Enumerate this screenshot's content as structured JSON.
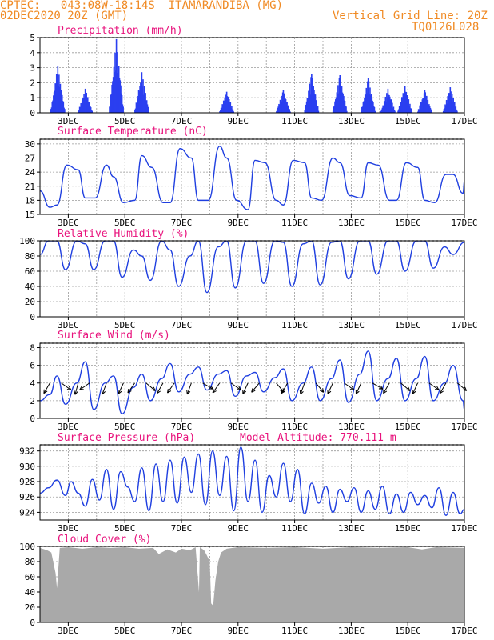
{
  "header": {
    "line1": "CPTEC:   043:08W-18:14S  ITAMARANDIBA (MG)",
    "line2": "02DEC2020 20Z (GMT)",
    "grid_note": "Vertical Grid Line: 20Z",
    "code": "TQ0126L028"
  },
  "colors": {
    "header": "#f08a24",
    "title": "#e8127c",
    "series": "#1f3fe0",
    "bars": "#2a3ff0",
    "cloud": "#a9a9a9",
    "grid": "#9a9a9a"
  },
  "x_axis": {
    "tick_labels": [
      "3DEC",
      "5DEC",
      "7DEC",
      "9DEC",
      "11DEC",
      "13DEC",
      "15DEC",
      "17DEC"
    ]
  },
  "chart_data": [
    {
      "id": "precip",
      "type": "bar",
      "title": "Precipitation (mm/h)",
      "yticks": [
        0,
        1,
        2,
        3,
        4,
        5
      ],
      "ylim": [
        0,
        5
      ],
      "bursts": [
        {
          "x": 2.63,
          "peak": 3.1
        },
        {
          "x": 3.6,
          "peak": 1.6
        },
        {
          "x": 4.7,
          "peak": 4.9
        },
        {
          "x": 5.6,
          "peak": 2.7
        },
        {
          "x": 8.6,
          "peak": 1.4
        },
        {
          "x": 10.6,
          "peak": 1.5
        },
        {
          "x": 11.6,
          "peak": 2.6
        },
        {
          "x": 12.6,
          "peak": 2.5
        },
        {
          "x": 13.6,
          "peak": 2.3
        },
        {
          "x": 14.3,
          "peak": 1.6
        },
        {
          "x": 14.9,
          "peak": 1.8
        },
        {
          "x": 15.6,
          "peak": 1.5
        },
        {
          "x": 16.5,
          "peak": 1.7
        }
      ]
    },
    {
      "id": "temp",
      "type": "line",
      "title": "Surface Temperature (nC)",
      "yticks": [
        15,
        18,
        21,
        24,
        27,
        30
      ],
      "ylim": [
        15,
        31
      ],
      "x": [
        2.0,
        2.35,
        2.6,
        2.95,
        3.35,
        3.6,
        3.95,
        4.35,
        4.6,
        4.95,
        5.35,
        5.6,
        5.95,
        6.35,
        6.6,
        6.95,
        7.35,
        7.6,
        7.95,
        8.35,
        8.6,
        8.95,
        9.35,
        9.6,
        9.95,
        10.35,
        10.6,
        10.95,
        11.35,
        11.6,
        11.95,
        12.35,
        12.6,
        12.95,
        13.35,
        13.6,
        13.95,
        14.35,
        14.6,
        14.95,
        15.35,
        15.6,
        15.95,
        16.35,
        16.6,
        16.95,
        17.0
      ],
      "y": [
        20,
        16.5,
        17,
        25.5,
        24.5,
        18.5,
        18.5,
        25.5,
        23,
        17.5,
        18,
        27.5,
        25,
        17.5,
        17.5,
        29,
        27,
        18,
        18,
        29.5,
        27,
        18,
        16,
        26.5,
        26,
        18,
        17,
        26.5,
        26,
        18.5,
        18,
        27,
        26,
        19,
        18.5,
        26,
        25.5,
        18,
        18,
        26,
        25,
        18,
        17.5,
        23.5,
        23.5,
        19.5,
        22
      ]
    },
    {
      "id": "rh",
      "type": "line",
      "title": "Relative Humidity (%)",
      "yticks": [
        0,
        20,
        40,
        60,
        80,
        100
      ],
      "ylim": [
        0,
        100
      ],
      "x": [
        2.0,
        2.3,
        2.6,
        2.9,
        3.3,
        3.6,
        3.9,
        4.3,
        4.6,
        4.9,
        5.3,
        5.6,
        5.9,
        6.3,
        6.6,
        6.9,
        7.3,
        7.6,
        7.9,
        8.3,
        8.6,
        8.9,
        9.3,
        9.6,
        9.9,
        10.3,
        10.6,
        10.9,
        11.3,
        11.6,
        11.9,
        12.3,
        12.6,
        12.9,
        13.3,
        13.6,
        13.9,
        14.3,
        14.6,
        14.9,
        15.3,
        15.6,
        15.9,
        16.3,
        16.6,
        17.0
      ],
      "y": [
        82,
        100,
        100,
        62,
        100,
        96,
        62,
        100,
        100,
        52,
        88,
        80,
        48,
        100,
        88,
        40,
        80,
        100,
        32,
        92,
        100,
        38,
        100,
        100,
        44,
        100,
        98,
        40,
        96,
        100,
        42,
        98,
        100,
        50,
        100,
        100,
        56,
        100,
        100,
        60,
        100,
        100,
        64,
        92,
        82,
        98
      ]
    },
    {
      "id": "wind",
      "type": "line",
      "title": "Surface Wind (m/s)",
      "yticks": [
        0,
        2,
        4,
        6,
        8
      ],
      "ylim": [
        0,
        8.5
      ],
      "x": [
        2.0,
        2.35,
        2.6,
        2.9,
        3.3,
        3.6,
        3.9,
        4.3,
        4.6,
        4.9,
        5.3,
        5.6,
        5.9,
        6.3,
        6.6,
        6.9,
        7.3,
        7.6,
        7.9,
        8.3,
        8.6,
        8.9,
        9.3,
        9.6,
        9.9,
        10.3,
        10.6,
        10.9,
        11.3,
        11.6,
        11.9,
        12.3,
        12.6,
        12.9,
        13.3,
        13.6,
        13.9,
        14.3,
        14.6,
        14.9,
        15.3,
        15.6,
        15.9,
        16.3,
        16.6,
        16.95,
        17.0
      ],
      "y": [
        2.0,
        2.7,
        4.8,
        1.6,
        4.0,
        6.4,
        1.0,
        4.0,
        4.8,
        0.5,
        3.5,
        5.0,
        2.0,
        4.5,
        6.2,
        3.0,
        5.0,
        5.8,
        3.2,
        5.0,
        5.4,
        2.5,
        4.8,
        5.2,
        3.0,
        4.6,
        5.6,
        2.0,
        4.0,
        5.8,
        2.0,
        4.5,
        6.6,
        1.8,
        5.0,
        7.6,
        2.0,
        4.5,
        6.8,
        2.0,
        4.5,
        7.0,
        2.0,
        4.0,
        6.0,
        2.0,
        1.0
      ],
      "arrows": [
        {
          "x": 2.35,
          "angle": 210
        },
        {
          "x": 2.75,
          "angle": 125
        },
        {
          "x": 3.35,
          "angle": 195
        },
        {
          "x": 3.75,
          "angle": 235
        },
        {
          "x": 4.35,
          "angle": 200
        },
        {
          "x": 4.95,
          "angle": 205
        },
        {
          "x": 5.35,
          "angle": 215
        },
        {
          "x": 5.75,
          "angle": 130
        },
        {
          "x": 6.35,
          "angle": 210
        },
        {
          "x": 6.75,
          "angle": 215
        },
        {
          "x": 7.35,
          "angle": 200
        },
        {
          "x": 7.75,
          "angle": 120
        },
        {
          "x": 8.35,
          "angle": 215
        },
        {
          "x": 8.75,
          "angle": 125
        },
        {
          "x": 9.35,
          "angle": 205
        },
        {
          "x": 9.75,
          "angle": 220
        },
        {
          "x": 10.35,
          "angle": 140
        },
        {
          "x": 10.75,
          "angle": 210
        },
        {
          "x": 11.35,
          "angle": 200
        },
        {
          "x": 11.75,
          "angle": 140
        },
        {
          "x": 12.35,
          "angle": 205
        },
        {
          "x": 12.75,
          "angle": 125
        },
        {
          "x": 13.35,
          "angle": 205
        },
        {
          "x": 13.75,
          "angle": 120
        },
        {
          "x": 14.35,
          "angle": 210
        },
        {
          "x": 14.75,
          "angle": 130
        },
        {
          "x": 15.35,
          "angle": 205
        },
        {
          "x": 15.75,
          "angle": 125
        },
        {
          "x": 16.35,
          "angle": 210
        },
        {
          "x": 16.75,
          "angle": 130
        }
      ]
    },
    {
      "id": "pressure",
      "type": "line",
      "title": "Surface Pressure (hPa)",
      "annotation": "Model Altitude: 770.111 m",
      "yticks": [
        924,
        926,
        928,
        930,
        932
      ],
      "ylim": [
        923,
        932.8
      ],
      "x": [
        2.0,
        2.3,
        2.6,
        2.9,
        3.1,
        3.35,
        3.6,
        3.85,
        4.1,
        4.35,
        4.6,
        4.85,
        5.1,
        5.35,
        5.6,
        5.85,
        6.1,
        6.35,
        6.6,
        6.85,
        7.1,
        7.35,
        7.6,
        7.85,
        8.1,
        8.35,
        8.6,
        8.85,
        9.1,
        9.35,
        9.6,
        9.85,
        10.1,
        10.35,
        10.6,
        10.85,
        11.1,
        11.35,
        11.6,
        11.85,
        12.1,
        12.35,
        12.6,
        12.85,
        13.1,
        13.35,
        13.6,
        13.85,
        14.1,
        14.35,
        14.6,
        14.85,
        15.1,
        15.35,
        15.6,
        15.85,
        16.1,
        16.35,
        16.6,
        16.85,
        17.0
      ],
      "y": [
        926.5,
        927.2,
        928.2,
        926.2,
        928.0,
        926.5,
        924.8,
        928.3,
        925.6,
        929.6,
        924.4,
        929.3,
        927.3,
        925.4,
        929.8,
        924.2,
        930.3,
        925.4,
        930.8,
        925.2,
        931.2,
        926.6,
        931.6,
        925.0,
        932.0,
        926.2,
        931.3,
        924.2,
        932.5,
        925.4,
        930.8,
        924.0,
        928.8,
        926.0,
        930.4,
        925.4,
        929.6,
        923.8,
        927.8,
        925.2,
        927.4,
        924.0,
        927.0,
        925.4,
        927.2,
        924.0,
        926.8,
        924.4,
        927.4,
        923.8,
        926.4,
        924.0,
        926.6,
        925.0,
        926.2,
        924.6,
        927.2,
        923.6,
        926.6,
        923.8,
        924.4
      ]
    },
    {
      "id": "cloud",
      "type": "area",
      "title": "Cloud Cover (%)",
      "yticks": [
        0,
        20,
        40,
        60,
        80,
        100
      ],
      "ylim": [
        0,
        100
      ],
      "x": [
        2.0,
        2.25,
        2.4,
        2.55,
        2.6,
        2.7,
        3.0,
        3.5,
        4.0,
        4.5,
        5.0,
        5.5,
        6.0,
        6.2,
        6.5,
        6.8,
        7.0,
        7.3,
        7.5,
        7.62,
        7.65,
        7.8,
        7.9,
        8.0,
        8.05,
        8.12,
        8.2,
        8.3,
        8.4,
        8.6,
        9.0,
        10.0,
        11.0,
        12.0,
        13.0,
        14.0,
        15.0,
        15.5,
        16.0,
        17.0
      ],
      "y": [
        98,
        95,
        92,
        65,
        45,
        98,
        99,
        97,
        99,
        98,
        99,
        97,
        98,
        90,
        96,
        92,
        97,
        95,
        99,
        40,
        99,
        95,
        88,
        80,
        25,
        22,
        55,
        80,
        92,
        97,
        99,
        98,
        99,
        97,
        99,
        98,
        99,
        96,
        99,
        98
      ]
    }
  ]
}
